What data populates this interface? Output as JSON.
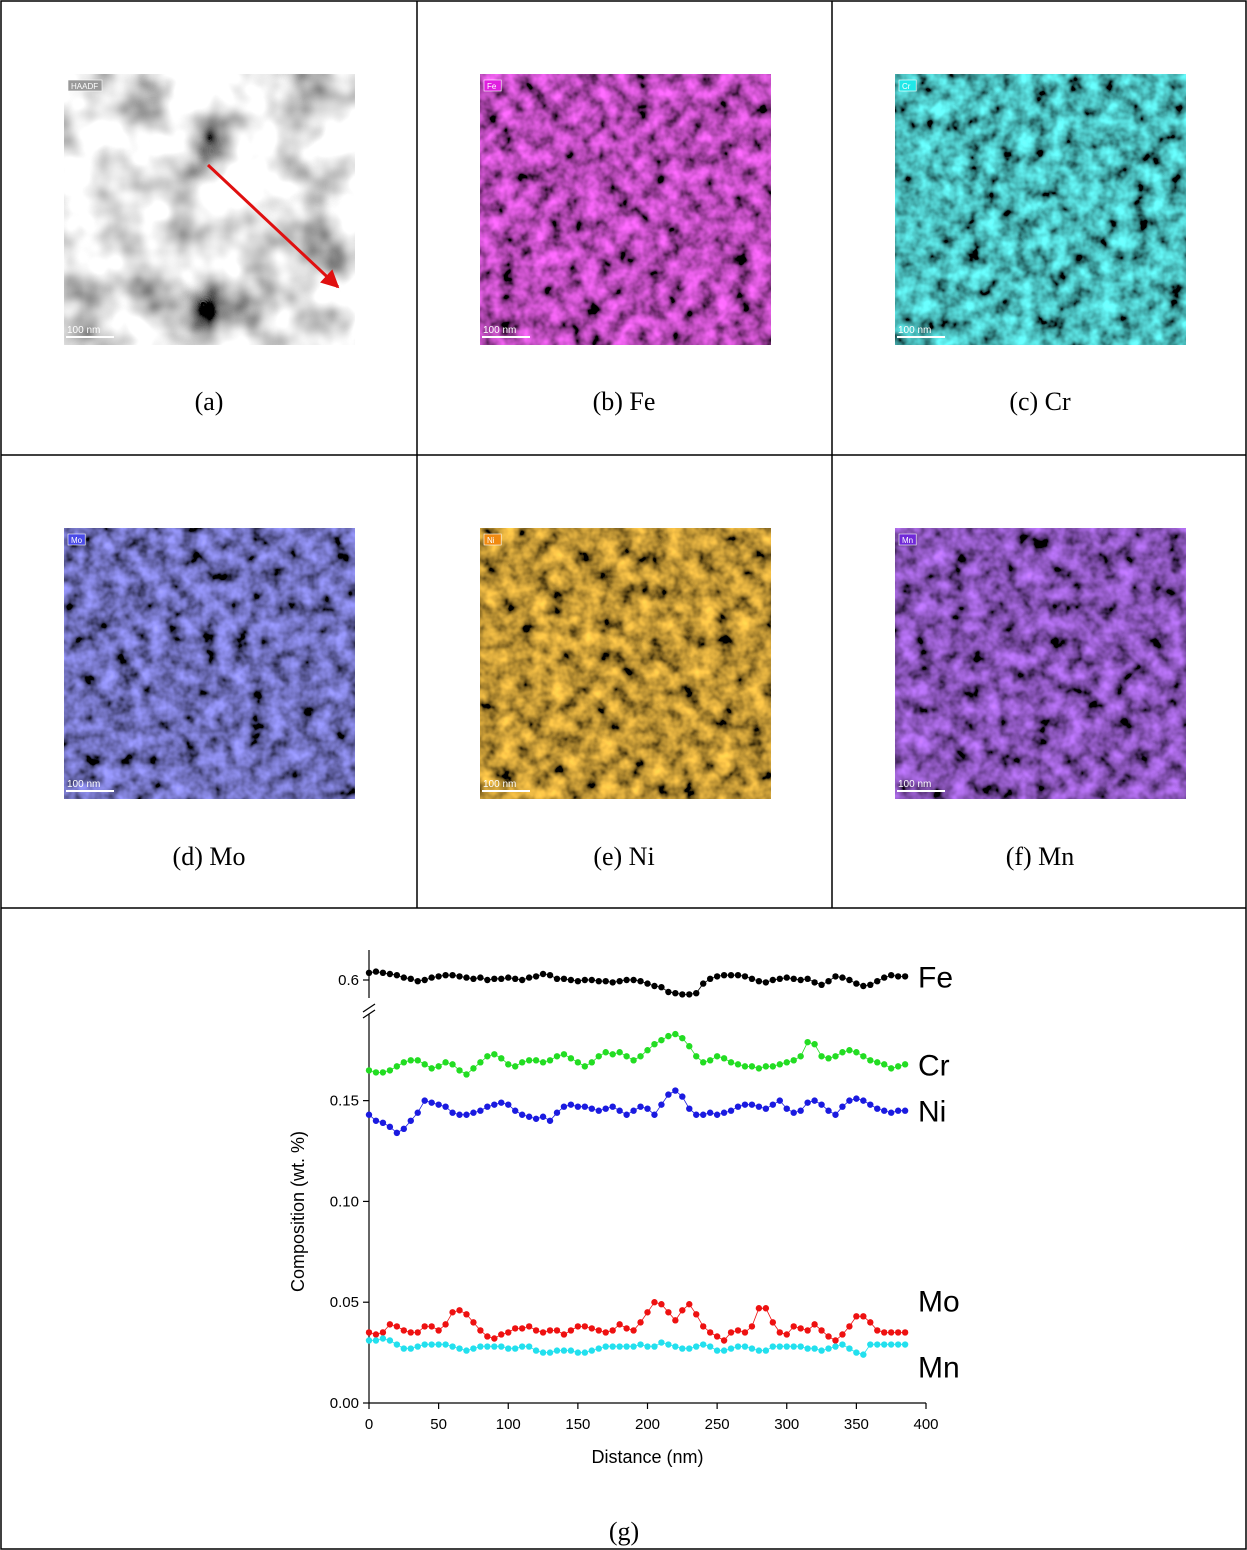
{
  "panels": [
    {
      "tag": "HAADF",
      "scale": "100 nm",
      "caption": "(a)",
      "color": "#ffffff"
    },
    {
      "tag": "Fe",
      "scale": "100 nm",
      "caption": "(b) Fe",
      "color": "#e020e0"
    },
    {
      "tag": "Cr",
      "scale": "100 nm",
      "caption": "(c) Cr",
      "color": "#20e8e8"
    },
    {
      "tag": "Mo",
      "scale": "100 nm",
      "caption": "(d) Mo",
      "color": "#4a4ae8"
    },
    {
      "tag": "Ni",
      "scale": "100 nm",
      "caption": "(e) Ni",
      "color": "#f08a10"
    },
    {
      "tag": "Mn",
      "scale": "100 nm",
      "caption": "(f) Mn",
      "color": "#7028d8"
    }
  ],
  "chart_data": {
    "type": "line",
    "caption": "(g)",
    "xlabel": "Distance (nm)",
    "ylabel": "Composition (wt. %)",
    "x": [
      0,
      5,
      10,
      15,
      20,
      25,
      30,
      35,
      40,
      45,
      50,
      55,
      60,
      65,
      70,
      75,
      80,
      85,
      90,
      95,
      100,
      105,
      110,
      115,
      120,
      125,
      130,
      135,
      140,
      145,
      150,
      155,
      160,
      165,
      170,
      175,
      180,
      185,
      190,
      195,
      200,
      205,
      210,
      215,
      220,
      225,
      230,
      235,
      240,
      245,
      250,
      255,
      260,
      265,
      270,
      275,
      280,
      285,
      290,
      295,
      300,
      305,
      310,
      315,
      320,
      325,
      330,
      335,
      340,
      345,
      350,
      355,
      360,
      365,
      370,
      375,
      380,
      385
    ],
    "xlim": [
      0,
      400
    ],
    "xticks": [
      0,
      50,
      100,
      150,
      200,
      250,
      300,
      350,
      400
    ],
    "ylim": [
      0,
      0.19
    ],
    "yticks": [
      {
        "value": 0,
        "label": "0.00"
      },
      0.05,
      {
        "value": 0.1,
        "label": "0.10"
      },
      0.15
    ],
    "y2lim": [
      0.575,
      0.625
    ],
    "y2ticks": [
      0.6
    ],
    "series": [
      {
        "name": "Fe",
        "color": "#000000",
        "axis": "y2",
        "values": [
          0.606,
          0.607,
          0.606,
          0.605,
          0.604,
          0.602,
          0.601,
          0.599,
          0.6,
          0.602,
          0.603,
          0.604,
          0.604,
          0.603,
          0.602,
          0.601,
          0.602,
          0.6,
          0.601,
          0.601,
          0.602,
          0.601,
          0.6,
          0.602,
          0.603,
          0.605,
          0.604,
          0.601,
          0.601,
          0.6,
          0.599,
          0.6,
          0.6,
          0.599,
          0.599,
          0.598,
          0.599,
          0.6,
          0.6,
          0.599,
          0.597,
          0.595,
          0.594,
          0.59,
          0.589,
          0.588,
          0.588,
          0.589,
          0.597,
          0.601,
          0.603,
          0.604,
          0.604,
          0.604,
          0.603,
          0.601,
          0.599,
          0.598,
          0.6,
          0.601,
          0.602,
          0.601,
          0.6,
          0.601,
          0.598,
          0.596,
          0.599,
          0.603,
          0.602,
          0.6,
          0.597,
          0.595,
          0.596,
          0.599,
          0.602,
          0.604,
          0.603,
          0.603
        ]
      },
      {
        "name": "Cr",
        "color": "#22dd22",
        "values": [
          0.165,
          0.164,
          0.164,
          0.165,
          0.167,
          0.169,
          0.17,
          0.17,
          0.168,
          0.166,
          0.167,
          0.169,
          0.168,
          0.165,
          0.163,
          0.166,
          0.169,
          0.172,
          0.173,
          0.171,
          0.168,
          0.167,
          0.169,
          0.17,
          0.17,
          0.169,
          0.17,
          0.172,
          0.173,
          0.171,
          0.169,
          0.167,
          0.169,
          0.172,
          0.174,
          0.173,
          0.174,
          0.172,
          0.17,
          0.172,
          0.175,
          0.178,
          0.18,
          0.182,
          0.183,
          0.181,
          0.177,
          0.172,
          0.169,
          0.17,
          0.172,
          0.171,
          0.169,
          0.168,
          0.167,
          0.167,
          0.166,
          0.167,
          0.167,
          0.168,
          0.169,
          0.17,
          0.172,
          0.179,
          0.178,
          0.172,
          0.171,
          0.172,
          0.174,
          0.175,
          0.174,
          0.172,
          0.17,
          0.169,
          0.168,
          0.166,
          0.167,
          0.168
        ]
      },
      {
        "name": "Ni",
        "color": "#1a1ae0",
        "values": [
          0.143,
          0.14,
          0.139,
          0.137,
          0.134,
          0.136,
          0.14,
          0.144,
          0.15,
          0.149,
          0.148,
          0.147,
          0.144,
          0.143,
          0.143,
          0.144,
          0.145,
          0.147,
          0.148,
          0.149,
          0.148,
          0.145,
          0.143,
          0.142,
          0.141,
          0.142,
          0.14,
          0.144,
          0.147,
          0.148,
          0.147,
          0.147,
          0.146,
          0.145,
          0.146,
          0.147,
          0.145,
          0.143,
          0.145,
          0.147,
          0.146,
          0.143,
          0.148,
          0.153,
          0.155,
          0.152,
          0.146,
          0.143,
          0.143,
          0.144,
          0.143,
          0.144,
          0.145,
          0.147,
          0.148,
          0.148,
          0.147,
          0.146,
          0.148,
          0.15,
          0.146,
          0.144,
          0.145,
          0.149,
          0.15,
          0.148,
          0.145,
          0.143,
          0.147,
          0.15,
          0.151,
          0.15,
          0.148,
          0.146,
          0.145,
          0.144,
          0.145,
          0.145
        ]
      },
      {
        "name": "Mo",
        "color": "#ee1111",
        "values": [
          0.035,
          0.034,
          0.035,
          0.039,
          0.038,
          0.036,
          0.035,
          0.035,
          0.038,
          0.038,
          0.036,
          0.039,
          0.045,
          0.046,
          0.044,
          0.04,
          0.036,
          0.033,
          0.032,
          0.034,
          0.035,
          0.037,
          0.037,
          0.038,
          0.036,
          0.035,
          0.036,
          0.036,
          0.034,
          0.036,
          0.038,
          0.038,
          0.037,
          0.036,
          0.035,
          0.036,
          0.039,
          0.037,
          0.036,
          0.04,
          0.045,
          0.05,
          0.049,
          0.045,
          0.041,
          0.046,
          0.049,
          0.044,
          0.038,
          0.035,
          0.033,
          0.031,
          0.035,
          0.036,
          0.035,
          0.038,
          0.047,
          0.047,
          0.04,
          0.035,
          0.034,
          0.038,
          0.037,
          0.036,
          0.039,
          0.036,
          0.033,
          0.031,
          0.034,
          0.038,
          0.043,
          0.043,
          0.04,
          0.036,
          0.035,
          0.035,
          0.035,
          0.035
        ]
      },
      {
        "name": "Mn",
        "color": "#22e0ee",
        "values": [
          0.031,
          0.031,
          0.032,
          0.031,
          0.029,
          0.027,
          0.027,
          0.028,
          0.029,
          0.029,
          0.029,
          0.029,
          0.028,
          0.027,
          0.026,
          0.027,
          0.028,
          0.028,
          0.028,
          0.028,
          0.027,
          0.027,
          0.028,
          0.028,
          0.026,
          0.025,
          0.025,
          0.026,
          0.026,
          0.026,
          0.025,
          0.025,
          0.026,
          0.027,
          0.028,
          0.028,
          0.028,
          0.028,
          0.028,
          0.029,
          0.028,
          0.028,
          0.03,
          0.029,
          0.028,
          0.027,
          0.027,
          0.028,
          0.029,
          0.028,
          0.026,
          0.026,
          0.027,
          0.028,
          0.028,
          0.027,
          0.026,
          0.026,
          0.028,
          0.028,
          0.028,
          0.028,
          0.028,
          0.027,
          0.027,
          0.026,
          0.027,
          0.028,
          0.029,
          0.027,
          0.025,
          0.024,
          0.029,
          0.029,
          0.029,
          0.029,
          0.029,
          0.029
        ]
      }
    ]
  }
}
